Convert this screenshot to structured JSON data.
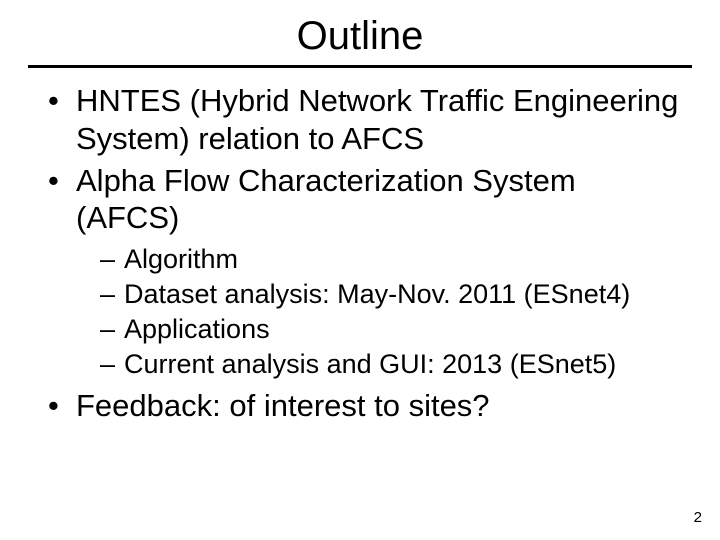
{
  "slide": {
    "title": "Outline",
    "page_number": "2",
    "background_color": "#ffffff",
    "text_color": "#000000",
    "rule_color": "#000000",
    "font_family": "Comic Sans MS",
    "title_fontsize": 40,
    "body_fontsize": 31,
    "sub_fontsize": 27,
    "bullets": [
      {
        "text": "HNTES (Hybrid Network Traffic Engineering System) relation to AFCS"
      },
      {
        "text": "Alpha Flow Characterization System (AFCS)",
        "children": [
          {
            "text": "Algorithm"
          },
          {
            "text": "Dataset analysis: May-Nov. 2011 (ESnet4)"
          },
          {
            "text": "Applications"
          },
          {
            "text": "Current analysis and GUI: 2013 (ESnet5)"
          }
        ]
      },
      {
        "text": "Feedback: of interest to sites?"
      }
    ]
  }
}
